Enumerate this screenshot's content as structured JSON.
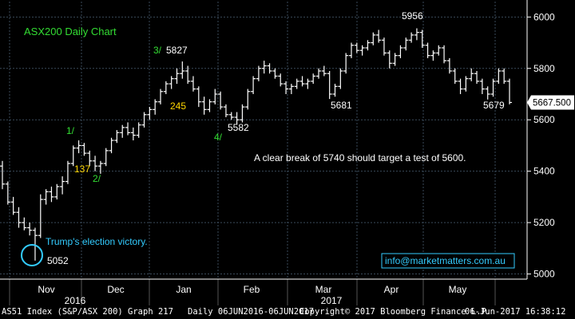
{
  "chart_data": {
    "type": "ohlc",
    "title": "ASX200 Daily Chart",
    "ylim": [
      4980,
      6060
    ],
    "y_ticks": [
      5000,
      5200,
      5400,
      5600,
      5800,
      6000
    ],
    "x_month_labels": [
      "Nov",
      "Dec",
      "Jan",
      "Feb",
      "Mar",
      "Apr",
      "May"
    ],
    "x_year_labels": [
      "2016",
      "2017"
    ],
    "last_price_label": "5667.500",
    "annotations": {
      "wave_1": "1/",
      "wave_137": "137",
      "wave_2": "2/",
      "wave_3": "3/",
      "wave_245": "245",
      "wave_4": "4/",
      "label_5827": "5827",
      "label_5582": "5582",
      "label_5681": "5681",
      "label_5956": "5956",
      "label_5679": "5679",
      "label_5052": "5052",
      "election_note": "Trump's election victory.",
      "target_note": "A clear break of 5740 should target a test of 5600.",
      "website": "info@marketmatters.com.au"
    },
    "colors": {
      "background": "#000000",
      "bars": "#ffffff",
      "grid": "#3a4a5a",
      "title": "#33dd33",
      "wave_green": "#33dd33",
      "wave_yellow": "#ffd700",
      "cyan": "#33ccff",
      "price_tag": "#ffffff"
    },
    "series": [
      {
        "values": [
          [
            5420,
            5440,
            5330,
            5350
          ],
          [
            5350,
            5360,
            5270,
            5280
          ],
          [
            5280,
            5300,
            5230,
            5240
          ],
          [
            5240,
            5260,
            5180,
            5200
          ],
          [
            5200,
            5220,
            5170,
            5180
          ],
          [
            5180,
            5200,
            5150,
            5170
          ],
          [
            5170,
            5180,
            5052,
            5150
          ],
          [
            5150,
            5310,
            5140,
            5290
          ],
          [
            5290,
            5330,
            5270,
            5320
          ],
          [
            5320,
            5340,
            5280,
            5300
          ],
          [
            5300,
            5350,
            5290,
            5340
          ],
          [
            5340,
            5380,
            5310,
            5360
          ],
          [
            5360,
            5440,
            5350,
            5430
          ],
          [
            5430,
            5500,
            5420,
            5490
          ],
          [
            5490,
            5520,
            5470,
            5500
          ],
          [
            5500,
            5510,
            5460,
            5470
          ],
          [
            5470,
            5480,
            5420,
            5440
          ],
          [
            5440,
            5460,
            5400,
            5420
          ],
          [
            5420,
            5440,
            5390,
            5430
          ],
          [
            5430,
            5490,
            5420,
            5480
          ],
          [
            5480,
            5530,
            5470,
            5520
          ],
          [
            5520,
            5560,
            5510,
            5550
          ],
          [
            5550,
            5580,
            5530,
            5570
          ],
          [
            5570,
            5590,
            5540,
            5550
          ],
          [
            5550,
            5570,
            5520,
            5540
          ],
          [
            5540,
            5590,
            5530,
            5580
          ],
          [
            5580,
            5630,
            5570,
            5620
          ],
          [
            5620,
            5650,
            5600,
            5640
          ],
          [
            5640,
            5680,
            5620,
            5670
          ],
          [
            5670,
            5720,
            5660,
            5710
          ],
          [
            5710,
            5750,
            5700,
            5740
          ],
          [
            5740,
            5770,
            5720,
            5760
          ],
          [
            5760,
            5800,
            5740,
            5780
          ],
          [
            5780,
            5827,
            5760,
            5790
          ],
          [
            5790,
            5810,
            5740,
            5750
          ],
          [
            5750,
            5770,
            5710,
            5720
          ],
          [
            5720,
            5730,
            5650,
            5670
          ],
          [
            5670,
            5690,
            5620,
            5640
          ],
          [
            5640,
            5680,
            5630,
            5670
          ],
          [
            5670,
            5720,
            5660,
            5700
          ],
          [
            5700,
            5710,
            5640,
            5650
          ],
          [
            5650,
            5660,
            5610,
            5620
          ],
          [
            5620,
            5630,
            5600,
            5610
          ],
          [
            5610,
            5630,
            5582,
            5600
          ],
          [
            5600,
            5660,
            5590,
            5650
          ],
          [
            5650,
            5720,
            5640,
            5710
          ],
          [
            5710,
            5770,
            5700,
            5760
          ],
          [
            5760,
            5810,
            5750,
            5800
          ],
          [
            5800,
            5830,
            5780,
            5810
          ],
          [
            5810,
            5820,
            5780,
            5790
          ],
          [
            5790,
            5800,
            5760,
            5770
          ],
          [
            5770,
            5780,
            5730,
            5740
          ],
          [
            5740,
            5750,
            5700,
            5720
          ],
          [
            5720,
            5740,
            5700,
            5730
          ],
          [
            5730,
            5760,
            5720,
            5750
          ],
          [
            5750,
            5770,
            5730,
            5740
          ],
          [
            5740,
            5760,
            5720,
            5750
          ],
          [
            5750,
            5780,
            5740,
            5770
          ],
          [
            5770,
            5800,
            5760,
            5790
          ],
          [
            5790,
            5810,
            5770,
            5780
          ],
          [
            5780,
            5790,
            5681,
            5700
          ],
          [
            5700,
            5740,
            5690,
            5730
          ],
          [
            5730,
            5800,
            5720,
            5790
          ],
          [
            5790,
            5860,
            5780,
            5850
          ],
          [
            5850,
            5900,
            5840,
            5890
          ],
          [
            5890,
            5900,
            5860,
            5870
          ],
          [
            5870,
            5890,
            5850,
            5880
          ],
          [
            5880,
            5910,
            5870,
            5900
          ],
          [
            5900,
            5940,
            5890,
            5930
          ],
          [
            5930,
            5950,
            5900,
            5910
          ],
          [
            5910,
            5920,
            5850,
            5860
          ],
          [
            5860,
            5870,
            5800,
            5820
          ],
          [
            5820,
            5860,
            5810,
            5850
          ],
          [
            5850,
            5890,
            5840,
            5880
          ],
          [
            5880,
            5920,
            5870,
            5910
          ],
          [
            5910,
            5940,
            5900,
            5930
          ],
          [
            5930,
            5956,
            5910,
            5940
          ],
          [
            5940,
            5950,
            5880,
            5890
          ],
          [
            5890,
            5900,
            5840,
            5850
          ],
          [
            5850,
            5870,
            5830,
            5860
          ],
          [
            5860,
            5890,
            5850,
            5880
          ],
          [
            5880,
            5890,
            5820,
            5830
          ],
          [
            5830,
            5840,
            5780,
            5790
          ],
          [
            5790,
            5800,
            5740,
            5750
          ],
          [
            5750,
            5760,
            5700,
            5720
          ],
          [
            5720,
            5770,
            5710,
            5760
          ],
          [
            5760,
            5800,
            5750,
            5780
          ],
          [
            5780,
            5790,
            5740,
            5750
          ],
          [
            5750,
            5760,
            5700,
            5720
          ],
          [
            5720,
            5730,
            5679,
            5700
          ],
          [
            5700,
            5760,
            5690,
            5750
          ],
          [
            5750,
            5800,
            5740,
            5790
          ],
          [
            5790,
            5800,
            5740,
            5750
          ],
          [
            5750,
            5760,
            5660,
            5667.5
          ]
        ]
      }
    ]
  },
  "footer": {
    "index": "AS51 Index (S&P/ASX 200) Graph 217",
    "range": "Daily 06JUN2016-06JUN2017",
    "copyright": "Copyright© 2017 Bloomberg Finance L.P.",
    "timestamp": "06-Jun-2017 16:38:12"
  }
}
